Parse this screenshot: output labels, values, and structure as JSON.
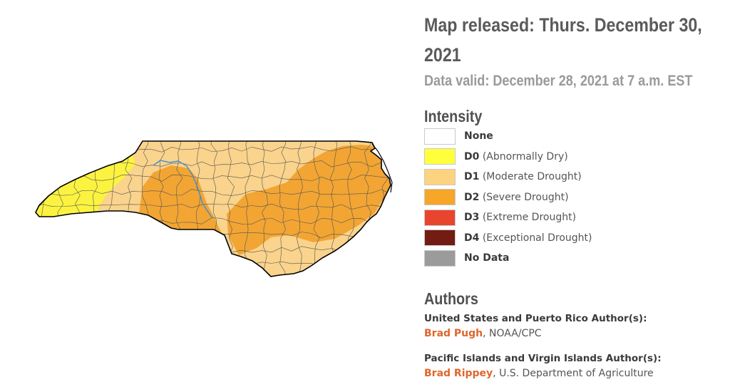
{
  "map": {
    "colors": {
      "d0": "#fbf340",
      "d1": "#fad38c",
      "d2": "#f2a533",
      "outline": "#000000",
      "county_lines": "#555555",
      "river": "#3b8fd9"
    }
  },
  "header": {
    "released": "Map released: Thurs. December 30, 2021",
    "valid": "Data valid: December 28, 2021 at 7 a.m. EST"
  },
  "legend": {
    "title": "Intensity",
    "items": [
      {
        "code": "None",
        "desc": "",
        "color": "#ffffff"
      },
      {
        "code": "D0",
        "desc": " (Abnormally Dry)",
        "color": "#ffff3c"
      },
      {
        "code": "D1",
        "desc": " (Moderate Drought)",
        "color": "#fcd37f"
      },
      {
        "code": "D2",
        "desc": " (Severe Drought)",
        "color": "#f7a628"
      },
      {
        "code": "D3",
        "desc": " (Extreme Drought)",
        "color": "#e8442e"
      },
      {
        "code": "D4",
        "desc": " (Exceptional Drought)",
        "color": "#731c13"
      },
      {
        "code": "No Data",
        "desc": "",
        "color": "#9b9b9b"
      }
    ]
  },
  "authors": {
    "title": "Authors",
    "groups": [
      {
        "label": "United States and Puerto Rico Author(s):",
        "name": "Brad Pugh",
        "org": ", NOAA/CPC"
      },
      {
        "label": "Pacific Islands and Virgin Islands Author(s):",
        "name": "Brad Rippey",
        "org": ", U.S. Department of Agriculture"
      }
    ]
  }
}
